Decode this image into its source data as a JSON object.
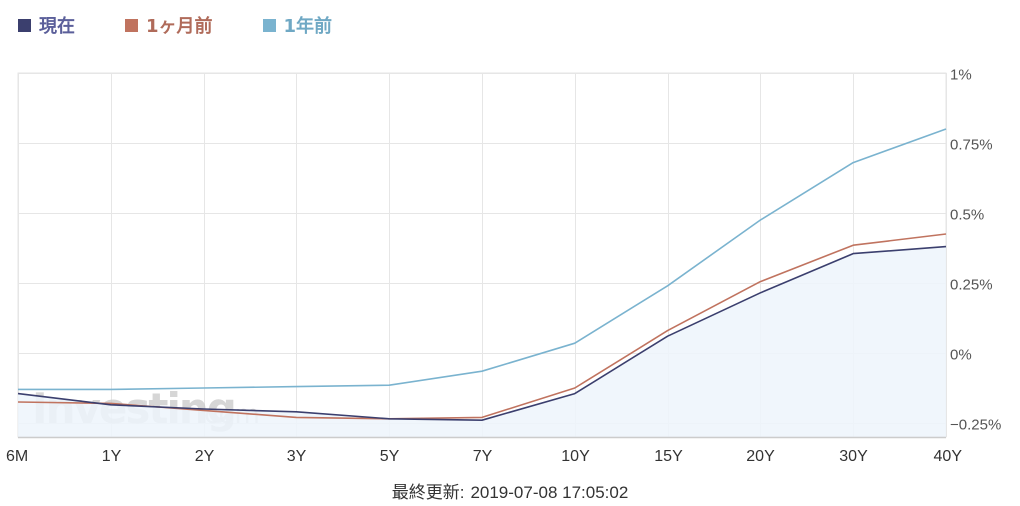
{
  "legend": [
    {
      "name": "現在",
      "color": "#3b3f6e",
      "text_color": "#5b5f9a"
    },
    {
      "name": "1ヶ月前",
      "color": "#c0735f",
      "text_color": "#b06b5a"
    },
    {
      "name": "1年前",
      "color": "#7ab3cf",
      "text_color": "#6fa8c4"
    }
  ],
  "watermark": {
    "brand": "Investing",
    "suffix": ".com"
  },
  "footer": {
    "label": "最終更新:",
    "timestamp": "2019-07-08 17:05:02"
  },
  "chart_data": {
    "type": "line",
    "categories": [
      "6M",
      "1Y",
      "2Y",
      "3Y",
      "5Y",
      "7Y",
      "10Y",
      "15Y",
      "20Y",
      "30Y",
      "40Y"
    ],
    "series": [
      {
        "name": "現在",
        "color": "#3b3f6e",
        "values": [
          -0.145,
          -0.185,
          -0.2,
          -0.21,
          -0.235,
          -0.24,
          -0.145,
          0.06,
          0.215,
          0.355,
          0.38
        ]
      },
      {
        "name": "1ヶ月前",
        "color": "#c0735f",
        "values": [
          -0.175,
          -0.18,
          -0.205,
          -0.23,
          -0.235,
          -0.23,
          -0.125,
          0.08,
          0.255,
          0.385,
          0.425
        ]
      },
      {
        "name": "1年前",
        "color": "#7ab3cf",
        "values": [
          -0.13,
          -0.13,
          -0.125,
          -0.12,
          -0.115,
          -0.065,
          0.035,
          0.24,
          0.475,
          0.68,
          0.8
        ]
      }
    ],
    "y_ticks": [
      "1%",
      "0.75%",
      "0.5%",
      "0.25%",
      "0%",
      "−0.25%"
    ],
    "y_tick_values": [
      1,
      0.75,
      0.5,
      0.25,
      0,
      -0.25
    ],
    "ylim": [
      -0.3,
      1
    ],
    "grid": true,
    "area_fill_series": "現在",
    "area_fill_color": "#edf4fc",
    "legend_position": "top-left"
  }
}
